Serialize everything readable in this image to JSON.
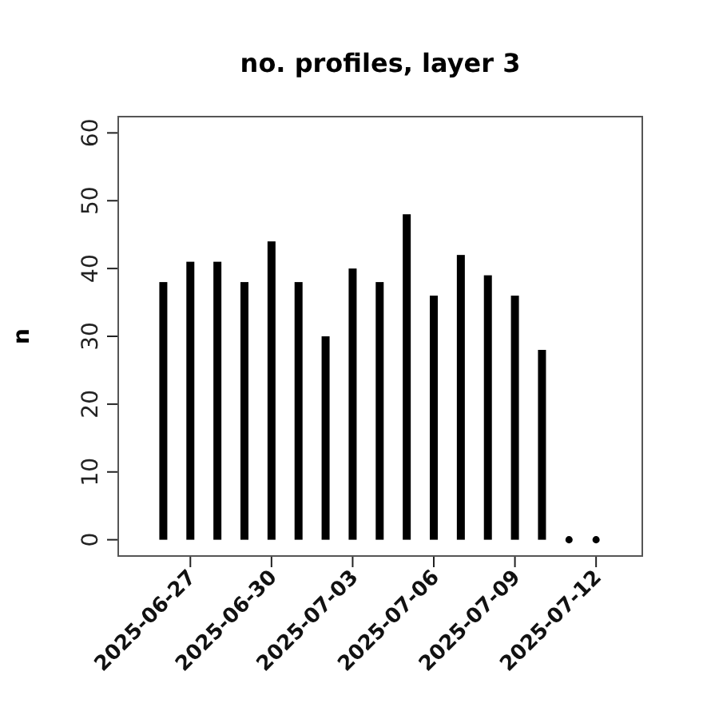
{
  "chart_data": {
    "type": "bar",
    "title": "no. profiles, layer 3",
    "ylabel": "n",
    "x": [
      "2025-06-26",
      "2025-06-27",
      "2025-06-28",
      "2025-06-29",
      "2025-06-30",
      "2025-07-01",
      "2025-07-02",
      "2025-07-03",
      "2025-07-04",
      "2025-07-05",
      "2025-07-06",
      "2025-07-07",
      "2025-07-08",
      "2025-07-09",
      "2025-07-10",
      "2025-07-11",
      "2025-07-12"
    ],
    "series": [
      {
        "color": "#000000",
        "values": [
          38,
          41,
          41,
          38,
          44,
          38,
          30,
          40,
          38,
          48,
          36,
          42,
          39,
          36,
          28,
          0,
          0
        ]
      },
      {
        "type": "scatter",
        "color": "#000000",
        "marker": "circle",
        "x": [
          "2025-07-11",
          "2025-07-12"
        ],
        "values": [
          0,
          0
        ]
      }
    ],
    "xlim": [
      "2025-06-24T08:00",
      "2025-07-13T17:00"
    ],
    "xticks": [
      {
        "value": "2025-06-27",
        "label": "2025-06-27"
      },
      {
        "value": "2025-06-30",
        "label": "2025-06-30"
      },
      {
        "value": "2025-07-03",
        "label": "2025-07-03"
      },
      {
        "value": "2025-07-06",
        "label": "2025-07-06"
      },
      {
        "value": "2025-07-09",
        "label": "2025-07-09"
      },
      {
        "value": "2025-07-12",
        "label": "2025-07-12"
      }
    ],
    "ylim": [
      -2.4,
      62.4
    ],
    "yticks": [
      0,
      10,
      20,
      30,
      40,
      50,
      60
    ],
    "grid": false
  }
}
